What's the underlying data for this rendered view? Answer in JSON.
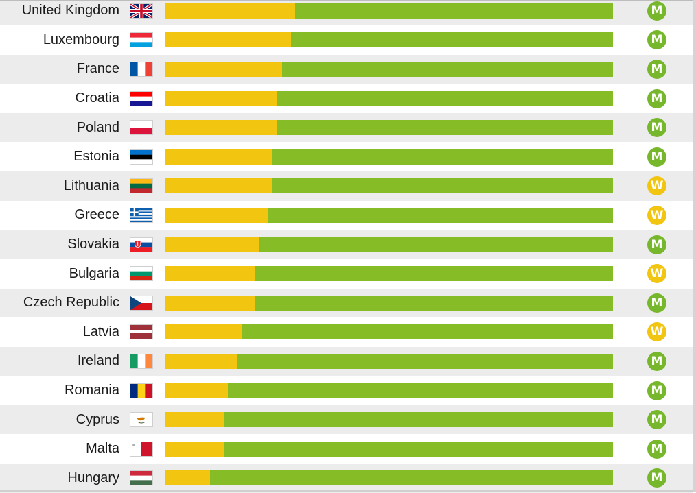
{
  "chart_data": {
    "type": "bar",
    "stacked": true,
    "orientation": "horizontal",
    "categories": [
      "United Kingdom",
      "Luxembourg",
      "France",
      "Croatia",
      "Poland",
      "Estonia",
      "Lithuania",
      "Greece",
      "Slovakia",
      "Bulgaria",
      "Czech Republic",
      "Latvia",
      "Ireland",
      "Romania",
      "Cyprus",
      "Malta",
      "Hungary"
    ],
    "series": [
      {
        "name": "yellow",
        "color": "#f2c511",
        "values": [
          29,
          28,
          26,
          25,
          25,
          24,
          24,
          23,
          21,
          20,
          20,
          17,
          16,
          14,
          13,
          13,
          10
        ]
      },
      {
        "name": "green",
        "color": "#86bc25",
        "values": [
          71,
          72,
          74,
          75,
          75,
          76,
          76,
          77,
          79,
          80,
          80,
          83,
          84,
          86,
          87,
          87,
          90
        ]
      }
    ],
    "xlim": [
      0,
      100
    ],
    "flags": [
      "uk-flag",
      "lu-flag",
      "fr-flag",
      "hr-flag",
      "pl-flag",
      "ee-flag",
      "lt-flag",
      "gr-flag",
      "sk-flag",
      "bg-flag",
      "cz-flag",
      "lv-flag",
      "ie-flag",
      "ro-flag",
      "cy-flag",
      "mt-flag",
      "hu-flag"
    ],
    "badges": [
      "M",
      "M",
      "M",
      "M",
      "M",
      "M",
      "W",
      "W",
      "M",
      "W",
      "M",
      "W",
      "M",
      "M",
      "M",
      "M",
      "M"
    ],
    "badge_colors": {
      "M": "#77b72b",
      "W": "#f2c511"
    },
    "grid": true
  }
}
